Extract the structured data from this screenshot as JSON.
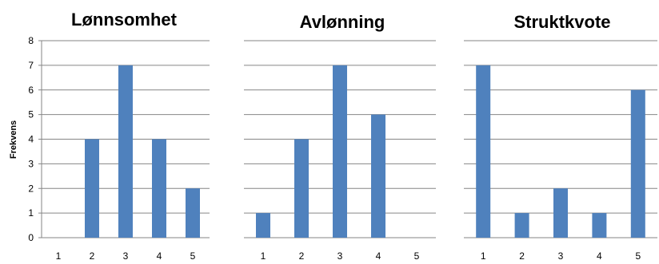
{
  "chart_data": [
    {
      "type": "bar",
      "title": "Lønnsomhet",
      "ylabel": "Frekvens",
      "categories": [
        "1",
        "2",
        "3",
        "4",
        "5"
      ],
      "values": [
        0,
        4,
        7,
        4,
        2
      ],
      "ylim": [
        0,
        8
      ],
      "yticks": [
        "0",
        "1",
        "2",
        "3",
        "4",
        "5",
        "6",
        "7",
        "8"
      ],
      "grid": true,
      "color": "#4f81bd"
    },
    {
      "type": "bar",
      "title": "Avlønning",
      "categories": [
        "1",
        "2",
        "3",
        "4",
        "5"
      ],
      "values": [
        1,
        4,
        7,
        5,
        0
      ],
      "ylim": [
        0,
        8
      ],
      "grid": true,
      "color": "#4f81bd"
    },
    {
      "type": "bar",
      "title": "Struktkvote",
      "categories": [
        "1",
        "2",
        "3",
        "4",
        "5"
      ],
      "values": [
        7,
        1,
        2,
        1,
        6
      ],
      "ylim": [
        0,
        8
      ],
      "grid": true,
      "color": "#4f81bd"
    }
  ]
}
